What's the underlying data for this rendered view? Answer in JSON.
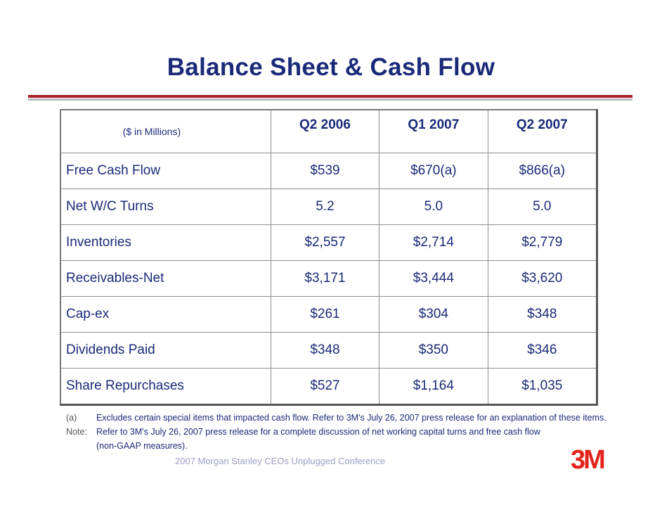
{
  "title": "Balance Sheet & Cash Flow",
  "table": {
    "unit_note": "($ in Millions)",
    "columns": [
      "Q2 2006",
      "Q1 2007",
      "Q2 2007"
    ],
    "rows": [
      {
        "label": "Free Cash Flow",
        "values": [
          "$539",
          "$670(a)",
          "$866(a)"
        ]
      },
      {
        "label": "Net W/C Turns",
        "values": [
          "5.2",
          "5.0",
          "5.0"
        ]
      },
      {
        "label": "Inventories",
        "values": [
          "$2,557",
          "$2,714",
          "$2,779"
        ]
      },
      {
        "label": "Receivables-Net",
        "values": [
          "$3,171",
          "$3,444",
          "$3,620"
        ]
      },
      {
        "label": "Cap-ex",
        "values": [
          "$261",
          "$304",
          "$348"
        ]
      },
      {
        "label": "Dividends Paid",
        "values": [
          "$348",
          "$350",
          "$346"
        ]
      },
      {
        "label": "Share Repurchases",
        "values": [
          "$527",
          "$1,164",
          "$1,035"
        ]
      }
    ]
  },
  "notes": [
    {
      "tag": "(a)",
      "text": "Excludes certain special items that impacted cash flow. Refer to 3M's  July 26, 2007 press release for an explanation of these items."
    },
    {
      "tag": "Note:",
      "text": "Refer to 3M's July 26, 2007 press release for a complete discussion of net working capital turns and free cash flow"
    },
    {
      "tag": "",
      "text": "(non-GAAP measures)."
    }
  ],
  "footer": "2007 Morgan Stanley CEOs Unplugged Conference",
  "logo": "3M",
  "colors": {
    "title": "#1a2a78",
    "accent_red": "#a8222a",
    "logo_red": "#e2231a"
  }
}
